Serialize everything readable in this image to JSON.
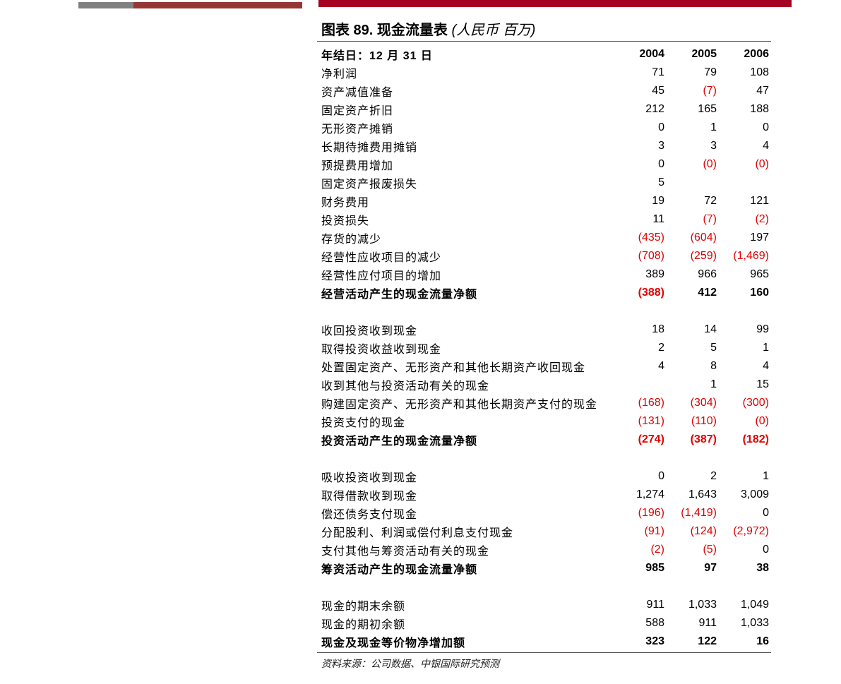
{
  "colors": {
    "bar_gray": "#808080",
    "bar_darkred": "#943634",
    "bar_red": "#a50021",
    "negative": "#e00000"
  },
  "title": {
    "prefix": "图表 89. 现金流量表",
    "unit": "(人民币 百万)"
  },
  "header": {
    "label": "年结日：12 月 31 日",
    "years": [
      "2004",
      "2005",
      "2006"
    ]
  },
  "rows": [
    {
      "label": "净利润",
      "values": [
        "71",
        "79",
        "108"
      ]
    },
    {
      "label": "资产减值准备",
      "values": [
        "45",
        "(7)",
        "47"
      ]
    },
    {
      "label": "固定资产折旧",
      "values": [
        "212",
        "165",
        "188"
      ]
    },
    {
      "label": "无形资产摊销",
      "values": [
        "0",
        "1",
        "0"
      ]
    },
    {
      "label": "长期待摊费用摊销",
      "values": [
        "3",
        "3",
        "4"
      ]
    },
    {
      "label": "预提费用增加",
      "values": [
        "0",
        "(0)",
        "(0)"
      ]
    },
    {
      "label": "固定资产报废损失",
      "values": [
        "5",
        "",
        ""
      ]
    },
    {
      "label": "财务费用",
      "values": [
        "19",
        "72",
        "121"
      ]
    },
    {
      "label": "投资损失",
      "values": [
        "11",
        "(7)",
        "(2)"
      ]
    },
    {
      "label": "存货的减少",
      "values": [
        "(435)",
        "(604)",
        "197"
      ]
    },
    {
      "label": "经营性应收项目的减少",
      "values": [
        "(708)",
        "(259)",
        "(1,469)"
      ]
    },
    {
      "label": "经营性应付项目的增加",
      "values": [
        "389",
        "966",
        "965"
      ]
    },
    {
      "label": "经营活动产生的现金流量净额",
      "values": [
        "(388)",
        "412",
        "160"
      ],
      "bold": true
    },
    {
      "spacer": true
    },
    {
      "label": "收回投资收到现金",
      "values": [
        "18",
        "14",
        "99"
      ]
    },
    {
      "label": "取得投资收益收到现金",
      "values": [
        "2",
        "5",
        "1"
      ]
    },
    {
      "label": "处置固定资产、无形资产和其他长期资产收回现金",
      "values": [
        "4",
        "8",
        "4"
      ]
    },
    {
      "label": "收到其他与投资活动有关的现金",
      "values": [
        "",
        "1",
        "15"
      ]
    },
    {
      "label": "购建固定资产、无形资产和其他长期资产支付的现金",
      "values": [
        "(168)",
        "(304)",
        "(300)"
      ]
    },
    {
      "label": "投资支付的现金",
      "values": [
        "(131)",
        "(110)",
        "(0)"
      ]
    },
    {
      "label": "投资活动产生的现金流量净额",
      "values": [
        "(274)",
        "(387)",
        "(182)"
      ],
      "bold": true
    },
    {
      "spacer": true
    },
    {
      "label": "吸收投资收到现金",
      "values": [
        "0",
        "2",
        "1"
      ]
    },
    {
      "label": "取得借款收到现金",
      "values": [
        "1,274",
        "1,643",
        "3,009"
      ]
    },
    {
      "label": "偿还债务支付现金",
      "values": [
        "(196)",
        "(1,419)",
        "0"
      ]
    },
    {
      "label": "分配股利、利润或偿付利息支付现金",
      "values": [
        "(91)",
        "(124)",
        "(2,972)"
      ]
    },
    {
      "label": "支付其他与筹资活动有关的现金",
      "values": [
        "(2)",
        "(5)",
        "0"
      ]
    },
    {
      "label": "筹资活动产生的现金流量净额",
      "values": [
        "985",
        "97",
        "38"
      ],
      "bold": true
    },
    {
      "spacer": true
    },
    {
      "label": "现金的期末余额",
      "values": [
        "911",
        "1,033",
        "1,049"
      ]
    },
    {
      "label": "现金的期初余额",
      "values": [
        "588",
        "911",
        "1,033"
      ]
    },
    {
      "label": "现金及现金等价物净增加额",
      "values": [
        "323",
        "122",
        "16"
      ],
      "bold": true
    }
  ],
  "source": "资料来源：公司数据、中银国际研究预测"
}
